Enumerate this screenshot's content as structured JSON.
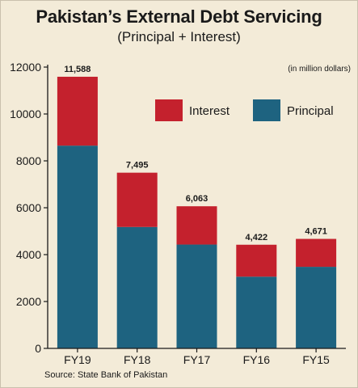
{
  "title": "Pakistan’s External Debt Servicing",
  "subtitle": "(Principal + Interest)",
  "unit_note": "(in million dollars)",
  "source": "Source: State Bank of Pakistan",
  "colors": {
    "interest": "#c4212d",
    "principal": "#1e6380",
    "background": "#f3ebd8"
  },
  "chart_data": {
    "type": "bar",
    "stacked": true,
    "categories": [
      "FY19",
      "FY18",
      "FY17",
      "FY16",
      "FY15"
    ],
    "series": [
      {
        "name": "Principal",
        "values": [
          8650,
          5180,
          4430,
          3060,
          3480
        ]
      },
      {
        "name": "Interest",
        "values": [
          2938,
          2315,
          1633,
          1362,
          1191
        ]
      }
    ],
    "totals": [
      "11,588",
      "7,495",
      "6,063",
      "4,422",
      "4,671"
    ],
    "ylim": [
      0,
      12000
    ],
    "yticks": [
      0,
      2000,
      4000,
      6000,
      8000,
      10000,
      12000
    ],
    "grid": false,
    "legend_position": "top-right",
    "legend": [
      "Interest",
      "Principal"
    ],
    "xlabel": "",
    "ylabel": ""
  }
}
